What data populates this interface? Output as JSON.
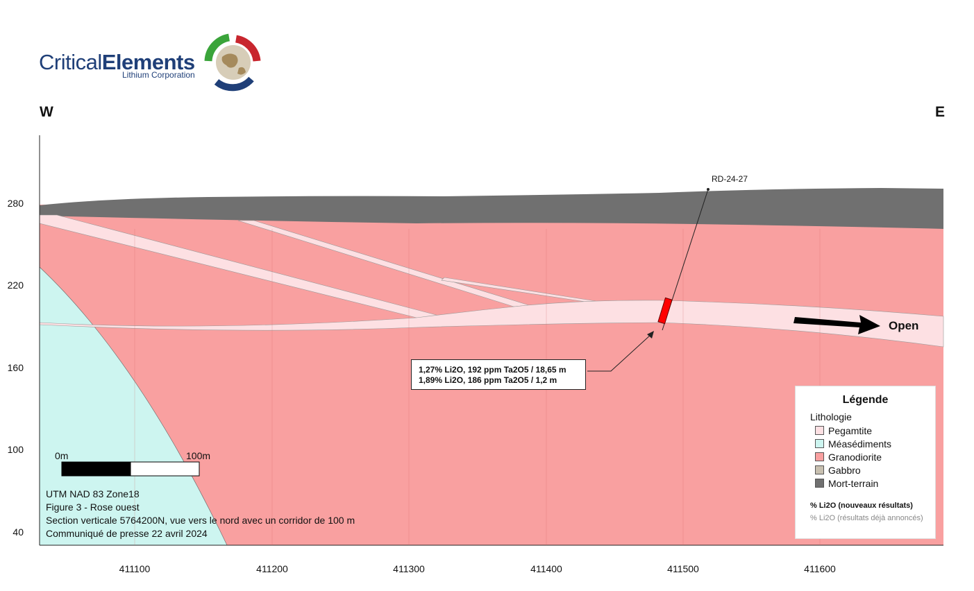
{
  "logo": {
    "text_light": "Critical",
    "text_bold": "Elements",
    "subtitle": "Lithium Corporation"
  },
  "directions": {
    "west": "W",
    "east": "E"
  },
  "axes": {
    "y_ticks": [
      "280",
      "220",
      "160",
      "100",
      "40"
    ],
    "x_ticks": [
      "411100",
      "411200",
      "411300",
      "411400",
      "411500",
      "411600"
    ]
  },
  "drillhole": {
    "name": "RD-24-27"
  },
  "intercept": {
    "line1": "1,27% Li2O, 192 ppm Ta2O5 / 18,65 m",
    "line2": "1,89% Li2O, 186 ppm Ta2O5 / 1,2 m"
  },
  "open_label": "Open",
  "scale_bar": {
    "left": "0m",
    "right": "100m"
  },
  "notes": [
    "UTM NAD 83 Zone18",
    "Figure 3 - Rose ouest",
    "Section verticale 5764200N, vue vers le nord avec un corridor de 100 m",
    "Communiqué de presse 22 avril 2024"
  ],
  "legend": {
    "title": "Légende",
    "subtitle": "Lithologie",
    "items": [
      {
        "label": "Pegamtite",
        "color": "#fde0e3"
      },
      {
        "label": "Méasédiments",
        "color": "#cdf5f0"
      },
      {
        "label": "Granodiorite",
        "color": "#f9a0a0"
      },
      {
        "label": "Gabbro",
        "color": "#c8c0b0"
      },
      {
        "label": "Mort-terrain",
        "color": "#707070"
      }
    ],
    "new_results": "% Li2O (nouveaux résultats)",
    "old_results": "% Li2O (résultats déjà annoncés)"
  },
  "colors": {
    "overburden": "#707070",
    "granodiorite": "#f9a0a0",
    "pegmatite": "#fde0e3",
    "metasediment": "#cdf5f0",
    "intercept": "#ff0000"
  }
}
